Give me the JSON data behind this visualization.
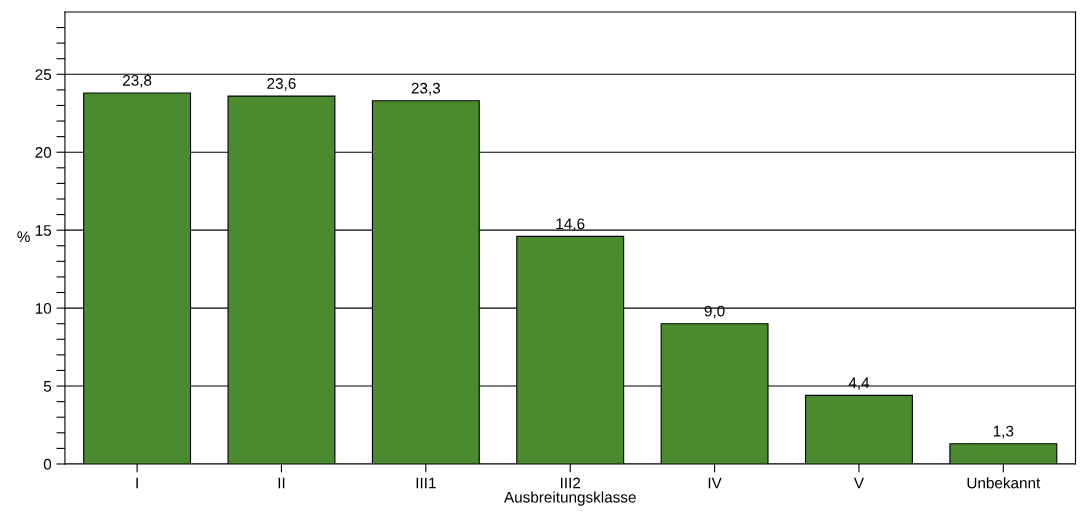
{
  "chart_data": {
    "type": "bar",
    "xlabel": "Ausbreitungsklasse",
    "ylabel": "%",
    "categories": [
      "I",
      "II",
      "III1",
      "III2",
      "IV",
      "V",
      "Unbekannt"
    ],
    "values": [
      23.8,
      23.6,
      23.3,
      14.6,
      9.0,
      4.4,
      1.3
    ],
    "value_labels": [
      "23,8",
      "23,6",
      "23,3",
      "14,6",
      "9,0",
      "4,4",
      "1,3"
    ],
    "color": "#4a8b2f",
    "ylim": [
      0,
      29
    ],
    "yticks": [
      0,
      {
        "value": 1,
        "label": null
      },
      {
        "value": 2,
        "label": null
      },
      {
        "value": 3,
        "label": null
      },
      {
        "value": 4,
        "label": null
      },
      5,
      {
        "value": 6,
        "label": null
      },
      {
        "value": 7,
        "label": null
      },
      {
        "value": 8,
        "label": null
      },
      {
        "value": 9,
        "label": null
      },
      10,
      {
        "value": 11,
        "label": null
      },
      {
        "value": 12,
        "label": null
      },
      {
        "value": 13,
        "label": null
      },
      {
        "value": 14,
        "label": null
      },
      15,
      {
        "value": 16,
        "label": null
      },
      {
        "value": 17,
        "label": null
      },
      {
        "value": 18,
        "label": null
      },
      {
        "value": 19,
        "label": null
      },
      20,
      {
        "value": 21,
        "label": null
      },
      {
        "value": 22,
        "label": null
      },
      {
        "value": 23,
        "label": null
      },
      {
        "value": 24,
        "label": null
      },
      25,
      {
        "value": 26,
        "label": null
      },
      {
        "value": 27,
        "label": null
      },
      {
        "value": 28,
        "label": null
      }
    ],
    "grid": "y",
    "legend": false
  }
}
